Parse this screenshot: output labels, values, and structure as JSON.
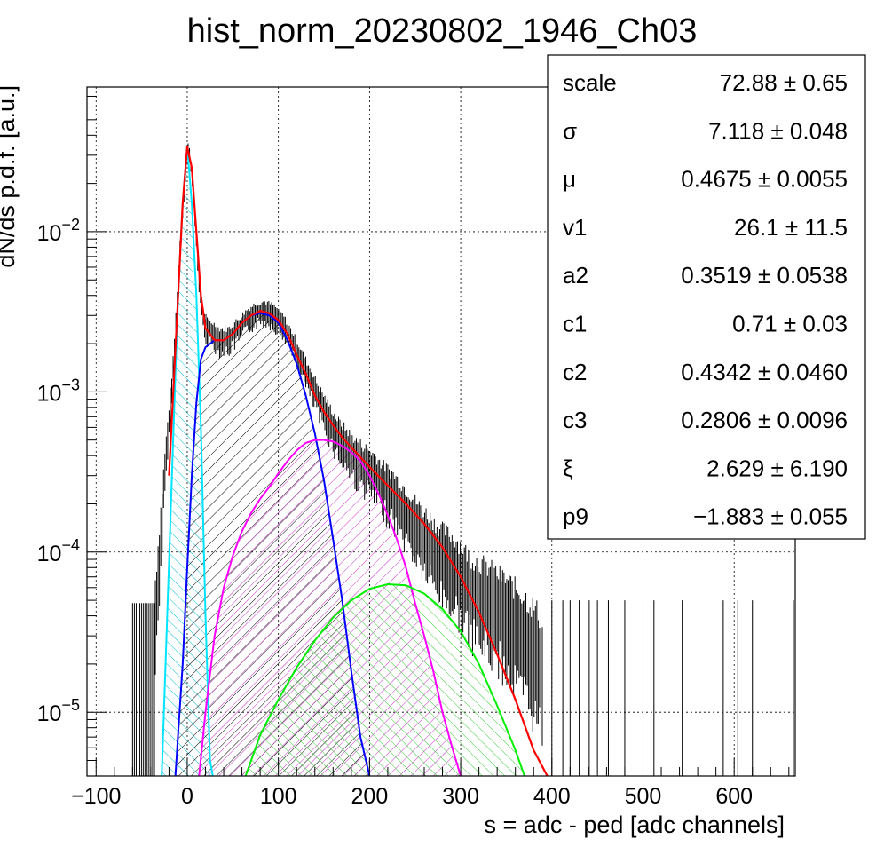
{
  "chart_data": {
    "type": "line",
    "title": "hist_norm_20230802_1946_Ch03",
    "xlabel": "s = adc - ped [adc channels]",
    "ylabel": "dN/ds p.d.f. [a.u.]",
    "xlim": [
      -110,
      667
    ],
    "ylim": [
      4e-06,
      0.08
    ],
    "y_scale": "log",
    "grid": true,
    "x_ticks": [
      -100,
      0,
      100,
      200,
      300,
      400,
      500,
      600
    ],
    "x_tick_labels": [
      "−100",
      "0",
      "100",
      "200",
      "300",
      "400",
      "500",
      "600"
    ],
    "y_ticks": [
      {
        "value": 0.01,
        "base": "10",
        "exp": "−2"
      },
      {
        "value": 0.001,
        "base": "10",
        "exp": "−3"
      },
      {
        "value": 0.0001,
        "base": "10",
        "exp": "−4"
      },
      {
        "value": 1e-05,
        "base": "10",
        "exp": "−5"
      }
    ],
    "series": [
      {
        "color": "#000000",
        "style": "histogram-errors",
        "x": [
          -35,
          -25,
          -15,
          -8,
          -3,
          0,
          3,
          8,
          12,
          17,
          22,
          28,
          35,
          45,
          55,
          65,
          75,
          85,
          95,
          105,
          115,
          125,
          135,
          145,
          155,
          165,
          175,
          185,
          195,
          205,
          215,
          225,
          235,
          245,
          255,
          265,
          275,
          285,
          295,
          310,
          330,
          350,
          370,
          390
        ],
        "y": [
          4e-05,
          0.0003,
          0.0015,
          0.008,
          0.02,
          0.035,
          0.03,
          0.014,
          0.006,
          0.003,
          0.0025,
          0.0024,
          0.0022,
          0.0022,
          0.0025,
          0.0029,
          0.0032,
          0.0033,
          0.0031,
          0.0027,
          0.0021,
          0.0016,
          0.0012,
          0.0009,
          0.0007,
          0.00055,
          0.00047,
          0.0004,
          0.00036,
          0.00032,
          0.00027,
          0.00024,
          0.0002,
          0.00017,
          0.00014,
          0.00012,
          0.0001,
          9e-05,
          8e-05,
          6e-05,
          5e-05,
          4e-05,
          3e-05,
          2e-05
        ]
      },
      {
        "color": "#ff0000",
        "style": "total-fit",
        "x": [
          -20,
          -10,
          -5,
          0,
          5,
          10,
          15,
          20,
          30,
          40,
          50,
          60,
          70,
          80,
          90,
          100,
          110,
          120,
          130,
          140,
          150,
          160,
          170,
          180,
          200,
          220,
          240,
          260,
          280,
          300,
          320,
          340,
          360,
          380,
          395
        ],
        "y": [
          0.0003,
          0.004,
          0.015,
          0.034,
          0.025,
          0.01,
          0.004,
          0.0025,
          0.0021,
          0.0021,
          0.0023,
          0.0027,
          0.003,
          0.0032,
          0.0031,
          0.0028,
          0.0023,
          0.0017,
          0.0013,
          0.00095,
          0.00075,
          0.00062,
          0.00052,
          0.00045,
          0.00034,
          0.00026,
          0.0002,
          0.00015,
          0.000107,
          7e-05,
          4.2e-05,
          2.3e-05,
          1.2e-05,
          5.8e-06,
          4e-06
        ]
      },
      {
        "color": "#00e5ff",
        "style": "filled-hatched",
        "x": [
          -28,
          -22,
          -15,
          -10,
          -5,
          0,
          5,
          10,
          15,
          20,
          25,
          28
        ],
        "y": [
          4e-06,
          4e-05,
          0.0006,
          0.004,
          0.015,
          0.034,
          0.015,
          0.004,
          0.0006,
          4e-05,
          5e-06,
          4e-06
        ]
      },
      {
        "color": "#0000ff",
        "style": "filled-hatched",
        "x": [
          -13,
          -5,
          0,
          5,
          10,
          15,
          20,
          30,
          40,
          50,
          60,
          70,
          80,
          90,
          100,
          110,
          120,
          130,
          140,
          150,
          160,
          170,
          180,
          190,
          200
        ],
        "y": [
          4e-06,
          2e-05,
          8e-05,
          0.0003,
          0.00085,
          0.0016,
          0.0019,
          0.0021,
          0.0021,
          0.0023,
          0.0027,
          0.003,
          0.0031,
          0.003,
          0.0027,
          0.0021,
          0.0015,
          0.00095,
          0.00055,
          0.00028,
          0.00012,
          5e-05,
          1.8e-05,
          7e-06,
          4e-06
        ]
      },
      {
        "color": "#ff00ff",
        "style": "filled-hatched",
        "x": [
          13,
          20,
          30,
          40,
          50,
          60,
          70,
          80,
          90,
          100,
          110,
          120,
          130,
          140,
          150,
          160,
          170,
          180,
          190,
          200,
          210,
          220,
          230,
          240,
          250,
          260,
          270,
          280,
          290,
          300
        ],
        "y": [
          4e-06,
          1e-05,
          3e-05,
          6e-05,
          9.5e-05,
          0.000135,
          0.000175,
          0.000215,
          0.000255,
          0.00031,
          0.00037,
          0.00043,
          0.00048,
          0.0005,
          0.0005,
          0.00049,
          0.00046,
          0.00042,
          0.00037,
          0.0003,
          0.00023,
          0.00017,
          0.00012,
          8e-05,
          4.8e-05,
          3e-05,
          1.8e-05,
          1e-05,
          6.2e-06,
          4e-06
        ]
      },
      {
        "color": "#00dd00",
        "style": "filled-hatched",
        "x": [
          64,
          80,
          100,
          120,
          140,
          160,
          180,
          200,
          220,
          240,
          260,
          280,
          300,
          320,
          340,
          360,
          370
        ],
        "y": [
          4e-06,
          7.2e-06,
          1.2e-05,
          1.9e-05,
          2.8e-05,
          3.9e-05,
          5e-05,
          5.9e-05,
          6.3e-05,
          6.2e-05,
          5.5e-05,
          4.4e-05,
          3.2e-05,
          2e-05,
          1.1e-05,
          5.8e-06,
          4e-06
        ]
      }
    ]
  },
  "stats_box": {
    "rows": [
      {
        "label": "scale",
        "value": "72.88 ± 0.65"
      },
      {
        "label": "σ",
        "value": "7.118 ± 0.048"
      },
      {
        "label": "μ",
        "value": "0.4675 ± 0.0055"
      },
      {
        "label": "v1",
        "value": "26.1 ± 11.5"
      },
      {
        "label": "a2",
        "value": "0.3519 ± 0.0538"
      },
      {
        "label": "c1",
        "value": "0.71 ± 0.03"
      },
      {
        "label": "c2",
        "value": "0.4342 ± 0.0460"
      },
      {
        "label": "c3",
        "value": "0.2806 ± 0.0096"
      },
      {
        "label": "ξ",
        "value": "2.629 ± 6.190"
      },
      {
        "label": "p9",
        "value": "−1.883 ± 0.055"
      }
    ]
  }
}
